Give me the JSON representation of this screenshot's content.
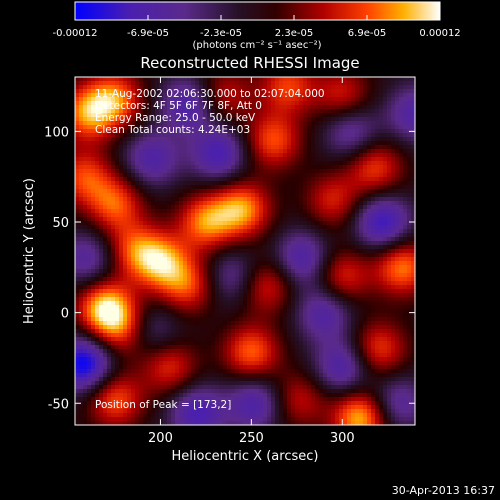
{
  "colorbar": {
    "tick_labels": [
      "-0.00012",
      "-6.9e-05",
      "-2.3e-05",
      "2.3e-05",
      "6.9e-05",
      "0.00012"
    ],
    "unit_label": "(photons cm⁻² s⁻¹ asec⁻²)",
    "range": [
      -0.00012,
      0.00012
    ],
    "colors": [
      "#0000ff",
      "#5020a0",
      "#2a0a2a",
      "#200000",
      "#a00000",
      "#ff3000",
      "#ffa000",
      "#ffff80",
      "#ffffff"
    ]
  },
  "annotations": {
    "time_range": "11-Aug-2002 02:06:30.000 to 02:07:04.000",
    "detectors": "Detectors: 4F 5F 6F 7F 8F, Att 0",
    "energy": "Energy Range: 25.0 - 50.0 keV",
    "algorithm": "Clean     Total counts: 4.24E+03",
    "peak": "Position of Peak = [173,2]"
  },
  "footer": {
    "date": "30-Apr-2013 16:37"
  },
  "chart_data": {
    "type": "heatmap",
    "title": "Reconstructed RHESSI Image",
    "xlabel": "Heliocentric X (arcsec)",
    "ylabel": "Heliocentric Y (arcsec)",
    "xlim": [
      153,
      340
    ],
    "ylim": [
      -62,
      130
    ],
    "xticks": [
      200,
      250,
      300
    ],
    "xtick_labels": [
      "200",
      "250",
      "300"
    ],
    "yticks": [
      -50,
      0,
      50,
      100
    ],
    "ytick_labels": [
      "-50",
      "0",
      "50",
      "100"
    ],
    "peak_position": [
      173,
      2
    ],
    "grid": false,
    "blobs": [
      {
        "x": 170,
        "y": 2,
        "v": 1.0
      },
      {
        "x": 160,
        "y": 110,
        "v": 0.75
      },
      {
        "x": 175,
        "y": 118,
        "v": 0.7
      },
      {
        "x": 158,
        "y": 75,
        "v": 0.6
      },
      {
        "x": 175,
        "y": 60,
        "v": 0.65
      },
      {
        "x": 200,
        "y": 28,
        "v": 0.8
      },
      {
        "x": 215,
        "y": 15,
        "v": 0.6
      },
      {
        "x": 185,
        "y": 35,
        "v": 0.55
      },
      {
        "x": 225,
        "y": 50,
        "v": 0.75
      },
      {
        "x": 245,
        "y": 57,
        "v": 0.8
      },
      {
        "x": 262,
        "y": 95,
        "v": 0.65
      },
      {
        "x": 270,
        "y": 125,
        "v": 0.6
      },
      {
        "x": 258,
        "y": 15,
        "v": 0.55
      },
      {
        "x": 250,
        "y": -22,
        "v": 0.7
      },
      {
        "x": 205,
        "y": -30,
        "v": 0.55
      },
      {
        "x": 175,
        "y": -48,
        "v": 0.65
      },
      {
        "x": 310,
        "y": -58,
        "v": 0.9
      },
      {
        "x": 320,
        "y": -20,
        "v": 0.6
      },
      {
        "x": 333,
        "y": 25,
        "v": 0.75
      },
      {
        "x": 300,
        "y": 20,
        "v": 0.55
      },
      {
        "x": 318,
        "y": 80,
        "v": 0.6
      },
      {
        "x": 295,
        "y": 62,
        "v": 0.5
      },
      {
        "x": 300,
        "y": 120,
        "v": 0.5
      },
      {
        "x": 235,
        "y": 120,
        "v": 0.45
      },
      {
        "x": 180,
        "y": -10,
        "v": 0.5
      },
      {
        "x": 276,
        "y": -48,
        "v": 0.45
      },
      {
        "x": 195,
        "y": 85,
        "v": -0.55
      },
      {
        "x": 215,
        "y": 115,
        "v": -0.6
      },
      {
        "x": 232,
        "y": 88,
        "v": -0.65
      },
      {
        "x": 278,
        "y": 30,
        "v": -0.6
      },
      {
        "x": 322,
        "y": 50,
        "v": -0.75
      },
      {
        "x": 300,
        "y": -30,
        "v": -0.6
      },
      {
        "x": 290,
        "y": 0,
        "v": -0.55
      },
      {
        "x": 252,
        "y": -50,
        "v": -0.6
      },
      {
        "x": 220,
        "y": -55,
        "v": -0.65
      },
      {
        "x": 158,
        "y": -28,
        "v": -0.95
      },
      {
        "x": 160,
        "y": 30,
        "v": -0.5
      },
      {
        "x": 340,
        "y": 110,
        "v": -0.55
      },
      {
        "x": 305,
        "y": 100,
        "v": -0.5
      },
      {
        "x": 240,
        "y": 20,
        "v": -0.45
      },
      {
        "x": 195,
        "y": -10,
        "v": -0.4
      },
      {
        "x": 330,
        "y": -50,
        "v": -0.5
      }
    ]
  }
}
